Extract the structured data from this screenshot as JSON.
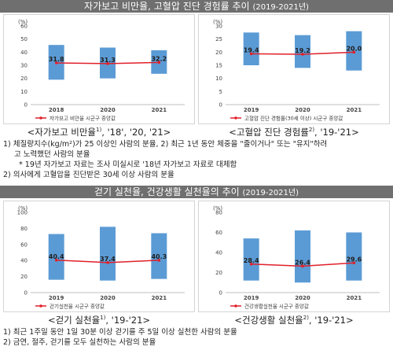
{
  "section1": {
    "title": "자가보고 비만율, 고혈압 진단 경험률 추이",
    "years": "(2019-2021년)",
    "charts": [
      {
        "caption": "<자가보고 비만율",
        "caption_sup": "1)",
        "caption_years": ", '18', '20, '21>"
      },
      {
        "caption": "<고혈압 진단 경험률",
        "caption_sup": "2)",
        "caption_years": ", '19-'21>"
      }
    ],
    "notes": [
      "1) 체질량지수(kg/m²)가 25 이상인 사람의 분율, 2) 최근 1년 동안 체중을 \"줄이거나\" 또는 \"유지\"하려",
      "고 노력했던 사람의 분율",
      "* 19년 자가보고 자료는 조사 미실시로 '18년 자가보고 자료로 대체함",
      "2) 의사에게 고혈압을 진단받은 30세 이상 사람의 분율"
    ]
  },
  "section2": {
    "title": "걷기 실천율, 건강생활 실천율의 추이",
    "years": "(2019-2021년)",
    "charts": [
      {
        "caption": "<걷기 실천율",
        "caption_sup": "1)",
        "caption_years": ", '19-'21>"
      },
      {
        "caption": "<건강생활 실천율",
        "caption_sup": "2)",
        "caption_years": ", '19-'21>"
      }
    ],
    "notes": [
      "1) 최근 1주일 동안 1일 30분 이상 걷기를 주 5일 이상 실천한 사람의 분율",
      "2) 금연, 절주, 걷기를 모두 실천하는 사람의 분율"
    ]
  },
  "chart_data": [
    {
      "type": "bar",
      "title": "",
      "ylabel": "(%)",
      "ylim": [
        0,
        60
      ],
      "yticks": [
        0,
        10,
        20,
        30,
        40,
        50,
        60
      ],
      "categories": [
        "2018",
        "2020",
        "2021"
      ],
      "ranges": [
        [
          19,
          45.5
        ],
        [
          20,
          43.5
        ],
        [
          23.5,
          41.5
        ]
      ],
      "series": [
        {
          "name": "자가보고 비만율 시군구 중앙값",
          "values": [
            31.8,
            31.3,
            32.2
          ]
        }
      ],
      "colors": {
        "bar": "#5b9bd5",
        "line": "#e0202a"
      },
      "legend": "bottom",
      "grid": false
    },
    {
      "type": "bar",
      "title": "",
      "ylabel": "(%)",
      "ylim": [
        0,
        30
      ],
      "yticks": [
        0,
        5,
        10,
        15,
        20,
        25,
        30
      ],
      "categories": [
        "2019",
        "2020",
        "2021"
      ],
      "ranges": [
        [
          15,
          27.5
        ],
        [
          14,
          26.5
        ],
        [
          13,
          28
        ]
      ],
      "series": [
        {
          "name": "고혈압 진단 경험률(30세 이상) 시군구 중앙값",
          "values": [
            19.4,
            19.2,
            20.0
          ]
        }
      ],
      "colors": {
        "bar": "#5b9bd5",
        "line": "#e0202a"
      },
      "legend": "bottom",
      "grid": false
    },
    {
      "type": "bar",
      "title": "",
      "ylabel": "(%)",
      "ylim": [
        0,
        100
      ],
      "yticks": [
        0,
        20,
        40,
        60,
        80,
        100
      ],
      "categories": [
        "2019",
        "2020",
        "2021"
      ],
      "ranges": [
        [
          16,
          73
        ],
        [
          15,
          82
        ],
        [
          17,
          74
        ]
      ],
      "series": [
        {
          "name": "걷기실천율 시군구 중앙값",
          "values": [
            40.4,
            37.4,
            40.3
          ]
        }
      ],
      "colors": {
        "bar": "#5b9bd5",
        "line": "#e0202a"
      },
      "legend": "bottom",
      "grid": false
    },
    {
      "type": "bar",
      "title": "",
      "ylabel": "(%)",
      "ylim": [
        0,
        80
      ],
      "yticks": [
        0,
        20,
        40,
        60,
        80
      ],
      "categories": [
        "2019",
        "2020",
        "2021"
      ],
      "ranges": [
        [
          12,
          54
        ],
        [
          10,
          62
        ],
        [
          12,
          60
        ]
      ],
      "series": [
        {
          "name": "건강생활실천율 시군구 중앙값",
          "values": [
            28.4,
            26.4,
            29.6
          ]
        }
      ],
      "colors": {
        "bar": "#5b9bd5",
        "line": "#e0202a"
      },
      "legend": "bottom",
      "grid": false
    }
  ]
}
